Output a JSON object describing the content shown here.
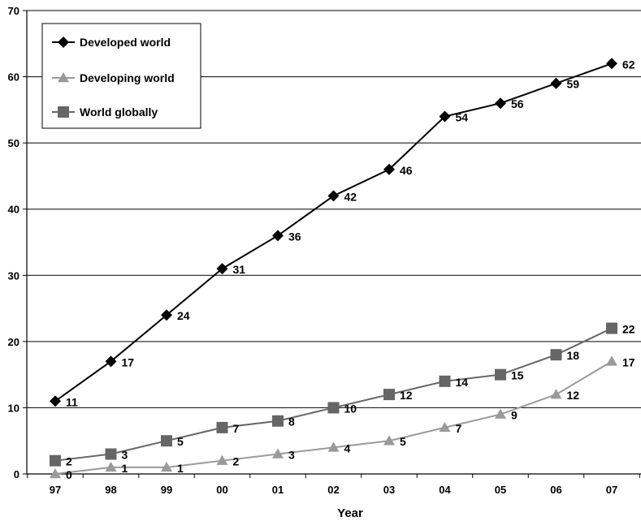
{
  "chart_data": {
    "type": "line",
    "title": "",
    "xlabel": "Year",
    "ylabel": "",
    "categories": [
      "97",
      "98",
      "99",
      "00",
      "01",
      "02",
      "03",
      "04",
      "05",
      "06",
      "07"
    ],
    "ylim": [
      0,
      70
    ],
    "yticks": [
      0,
      10,
      20,
      30,
      40,
      50,
      60,
      70
    ],
    "grid": "horizontal",
    "legend_position": "top-left",
    "series": [
      {
        "name": "Developed world",
        "marker": "diamond",
        "color": "#000000",
        "values": [
          11,
          17,
          24,
          31,
          36,
          42,
          46,
          54,
          56,
          59,
          62
        ]
      },
      {
        "name": "Developing world",
        "marker": "triangle",
        "color": "#9a9a9a",
        "values": [
          0,
          1,
          1,
          2,
          3,
          4,
          5,
          7,
          9,
          12,
          17
        ]
      },
      {
        "name": "World globally",
        "marker": "square",
        "color": "#666666",
        "values": [
          2,
          3,
          5,
          7,
          8,
          10,
          12,
          14,
          15,
          18,
          22
        ]
      }
    ]
  }
}
